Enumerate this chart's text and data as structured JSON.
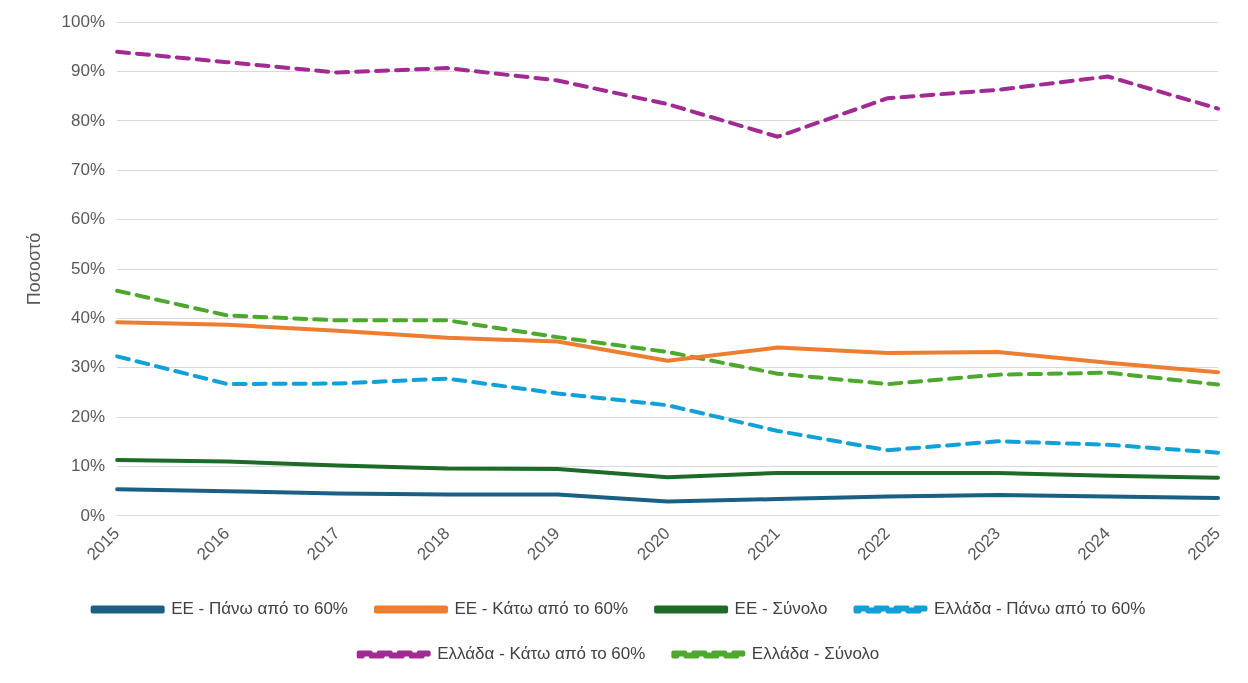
{
  "chart_data": {
    "type": "line",
    "ylabel": "Ποσοστό",
    "categories": [
      "2015",
      "2016",
      "2017",
      "2018",
      "2019",
      "2020",
      "2021",
      "2022",
      "2023",
      "2024",
      "2025"
    ],
    "ylim": [
      0,
      100
    ],
    "yticks": [
      {
        "value": 0,
        "label": "0%"
      },
      {
        "value": 10,
        "label": "10%"
      },
      {
        "value": 20,
        "label": "20%"
      },
      {
        "value": 30,
        "label": "30%"
      },
      {
        "value": 40,
        "label": "40%"
      },
      {
        "value": 50,
        "label": "50%"
      },
      {
        "value": 60,
        "label": "60%"
      },
      {
        "value": 70,
        "label": "70%"
      },
      {
        "value": 80,
        "label": "80%"
      },
      {
        "value": 90,
        "label": "90%"
      },
      {
        "value": 100,
        "label": "100%"
      }
    ],
    "grid": "y",
    "legend": "bottom",
    "marker": "none",
    "series": [
      {
        "name": "ΕΕ - Πάνω από το 60%",
        "color": "#1a5f84",
        "line_style": "solid",
        "values": [
          5.4,
          5.0,
          4.5,
          4.3,
          4.3,
          2.9,
          3.4,
          3.9,
          4.2,
          3.9,
          3.6
        ]
      },
      {
        "name": "ΕΕ - Κάτω από το 60%",
        "color": "#ed7d31",
        "line_style": "solid",
        "values": [
          39.2,
          38.7,
          37.5,
          36.1,
          35.3,
          31.4,
          34.1,
          33.0,
          33.2,
          31.0,
          29.1
        ]
      },
      {
        "name": "ΕΕ - Σύνολο",
        "color": "#1e6b27",
        "line_style": "solid",
        "values": [
          11.3,
          11.0,
          10.2,
          9.6,
          9.5,
          7.8,
          8.7,
          8.7,
          8.7,
          8.1,
          7.7
        ]
      },
      {
        "name": "Ελλάδα - Πάνω από το 60%",
        "color": "#12a0d8",
        "line_style": "dashed",
        "values": [
          32.3,
          26.7,
          26.8,
          27.8,
          24.8,
          22.4,
          17.2,
          13.3,
          15.1,
          14.4,
          12.8
        ]
      },
      {
        "name": "Ελλάδα - Κάτω από το 60%",
        "color": "#a02b93",
        "line_style": "dashed",
        "values": [
          94.0,
          91.9,
          89.8,
          90.7,
          88.2,
          83.4,
          76.8,
          84.6,
          86.3,
          89.0,
          82.5
        ]
      },
      {
        "name": "Ελλάδα - Σύνολο",
        "color": "#4ea72e",
        "line_style": "dashed",
        "values": [
          45.6,
          40.6,
          39.6,
          39.6,
          36.2,
          33.2,
          28.8,
          26.7,
          28.6,
          29.0,
          26.6
        ]
      }
    ]
  }
}
